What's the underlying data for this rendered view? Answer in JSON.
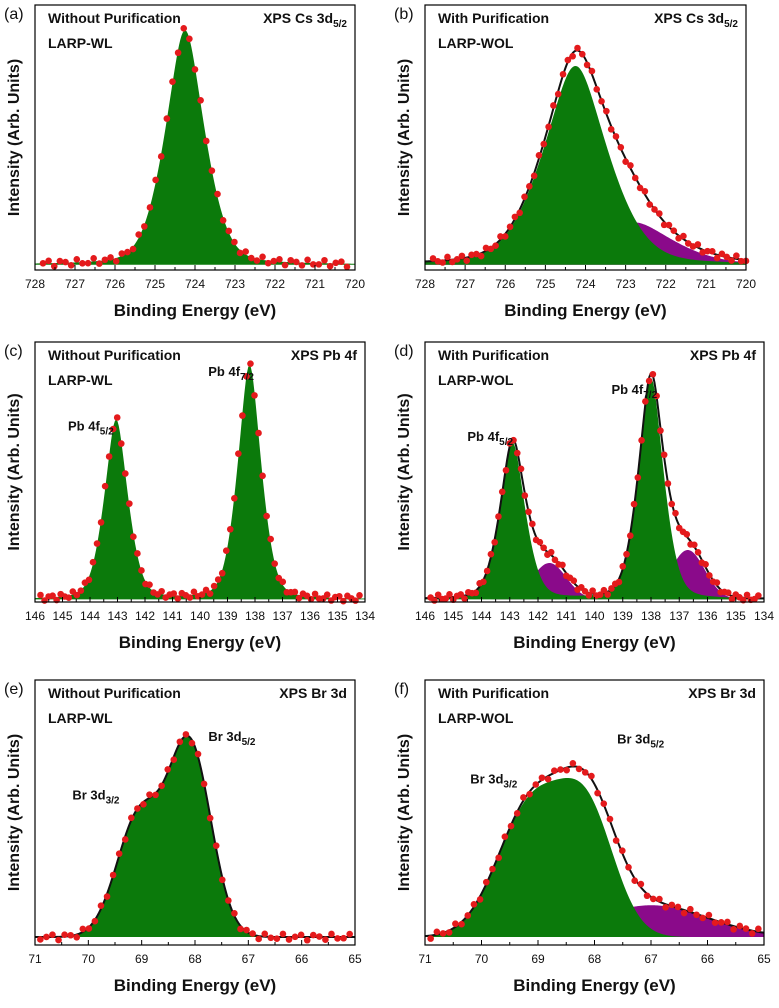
{
  "colors": {
    "primary": "#0b7a0b",
    "secondary": "#8a0a8a",
    "points": "#e41a1c",
    "envelope": "#111111",
    "axis": "#000000"
  },
  "chart_data": [
    {
      "type": "area",
      "panel": "(a)",
      "title": "",
      "subtitle_lines": [
        "Without Purification",
        "LARP-WL"
      ],
      "corner_label": {
        "main": "XPS Cs 3d",
        "sub": "5/2"
      },
      "xlabel": "Binding Energy (eV)",
      "ylabel": "Intensity (Arb. Units)",
      "xlim": [
        728,
        720
      ],
      "xticks": [
        728,
        727,
        726,
        725,
        724,
        723,
        722,
        721,
        720
      ],
      "ylim": [
        0,
        1.0
      ],
      "baseline": 0.02,
      "show_envelope": false,
      "components": [
        {
          "role": "primary",
          "center": 724.25,
          "amplitude": 0.885,
          "width": 0.55,
          "shape": "voigt"
        }
      ],
      "point_range": [
        727.8,
        720.2
      ],
      "point_count": 55,
      "peak_labels": []
    },
    {
      "type": "area",
      "panel": "(b)",
      "title": "",
      "subtitle_lines": [
        "With Purification",
        "LARP-WOL"
      ],
      "corner_label": {
        "main": "XPS Cs 3d",
        "sub": "5/2"
      },
      "xlabel": "Binding Energy (eV)",
      "ylabel": "Intensity (Arb. Units)",
      "xlim": [
        728,
        720
      ],
      "xticks": [
        728,
        727,
        726,
        725,
        724,
        723,
        722,
        721,
        720
      ],
      "ylim": [
        0,
        1.0
      ],
      "baseline": 0.02,
      "show_envelope": true,
      "components": [
        {
          "role": "primary",
          "center": 724.25,
          "amplitude": 0.75,
          "width": 0.9,
          "shape": "voigt"
        },
        {
          "role": "secondary",
          "center": 722.8,
          "amplitude": 0.16,
          "width": 1.1,
          "shape": "voigt"
        }
      ],
      "point_range": [
        727.8,
        720.0
      ],
      "point_count": 66,
      "peak_labels": []
    },
    {
      "type": "area",
      "panel": "(c)",
      "title": "",
      "subtitle_lines": [
        "Without Purification",
        "LARP-WL"
      ],
      "corner_label": {
        "main": "XPS Pb 4f",
        "sub": ""
      },
      "xlabel": "Binding Energy (eV)",
      "ylabel": "Intensity (Arb. Units)",
      "xlim": [
        146,
        134
      ],
      "xticks": [
        146,
        145,
        144,
        143,
        142,
        141,
        140,
        139,
        138,
        137,
        136,
        135,
        134
      ],
      "ylim": [
        0,
        1.0
      ],
      "baseline": 0.01,
      "show_envelope": false,
      "components": [
        {
          "role": "primary",
          "center": 143.05,
          "amplitude": 0.69,
          "width": 0.48,
          "shape": "voigt"
        },
        {
          "role": "primary",
          "center": 138.2,
          "amplitude": 0.9,
          "width": 0.48,
          "shape": "voigt"
        }
      ],
      "point_range": [
        145.8,
        134.2
      ],
      "point_count": 80,
      "peak_labels": [
        {
          "text": "Pb 4f",
          "sub": "5/2",
          "x": 144.8,
          "y": 0.66
        },
        {
          "text": "Pb 4f",
          "sub": "7/2",
          "x": 139.7,
          "y": 0.87
        }
      ]
    },
    {
      "type": "area",
      "panel": "(d)",
      "title": "",
      "subtitle_lines": [
        "With Purification",
        "LARP-WOL"
      ],
      "corner_label": {
        "main": "XPS Pb 4f",
        "sub": ""
      },
      "xlabel": "Binding Energy (eV)",
      "ylabel": "Intensity (Arb. Units)",
      "xlim": [
        146,
        134
      ],
      "xticks": [
        146,
        145,
        144,
        143,
        142,
        141,
        140,
        139,
        138,
        137,
        136,
        135,
        134
      ],
      "ylim": [
        0,
        1.0
      ],
      "baseline": 0.01,
      "show_envelope": true,
      "components": [
        {
          "role": "primary",
          "center": 142.9,
          "amplitude": 0.6,
          "width": 0.5,
          "shape": "voigt"
        },
        {
          "role": "primary",
          "center": 138.0,
          "amplitude": 0.85,
          "width": 0.5,
          "shape": "voigt"
        },
        {
          "role": "secondary",
          "center": 141.6,
          "amplitude": 0.14,
          "width": 0.6,
          "shape": "gauss"
        },
        {
          "role": "secondary",
          "center": 136.7,
          "amplitude": 0.19,
          "width": 0.6,
          "shape": "gauss"
        }
      ],
      "point_range": [
        145.8,
        134.2
      ],
      "point_count": 88,
      "peak_labels": [
        {
          "text": "Pb 4f",
          "sub": "5/2",
          "x": 144.5,
          "y": 0.62
        },
        {
          "text": "Pb 4f",
          "sub": "7/2",
          "x": 139.4,
          "y": 0.8
        }
      ]
    },
    {
      "type": "area",
      "panel": "(e)",
      "title": "",
      "subtitle_lines": [
        "Without Purification",
        "LARP-WL"
      ],
      "corner_label": {
        "main": "XPS Br 3d",
        "sub": ""
      },
      "xlabel": "Binding Energy (eV)",
      "ylabel": "Intensity (Arb. Units)",
      "xlim": [
        71,
        65
      ],
      "xticks": [
        71,
        70,
        69,
        68,
        67,
        66,
        65
      ],
      "ylim": [
        0,
        1.0
      ],
      "baseline": 0.03,
      "show_envelope": true,
      "components": [
        {
          "role": "primary",
          "center": 69.05,
          "amplitude": 0.45,
          "width": 0.42,
          "shape": "gauss"
        },
        {
          "role": "primary",
          "center": 68.1,
          "amplitude": 0.72,
          "width": 0.4,
          "shape": "gauss"
        }
      ],
      "point_range": [
        70.9,
        65.1
      ],
      "point_count": 52,
      "peak_labels": [
        {
          "text": "Br 3d",
          "sub": "3/2",
          "x": 70.3,
          "y": 0.55
        },
        {
          "text": "Br 3d",
          "sub": "5/2",
          "x": 67.75,
          "y": 0.77
        }
      ]
    },
    {
      "type": "area",
      "panel": "(f)",
      "title": "",
      "subtitle_lines": [
        "With Purification",
        "LARP-WOL"
      ],
      "corner_label": {
        "main": "XPS Br 3d",
        "sub": ""
      },
      "xlabel": "Binding Energy (eV)",
      "ylabel": "Intensity (Arb. Units)",
      "xlim": [
        71,
        65
      ],
      "xticks": [
        71,
        70,
        69,
        68,
        67,
        66,
        65
      ],
      "ylim": [
        0,
        1.0
      ],
      "baseline": 0.03,
      "show_envelope": true,
      "components": [
        {
          "role": "primary",
          "center": 69.1,
          "amplitude": 0.5,
          "width": 0.6,
          "shape": "gauss"
        },
        {
          "role": "primary",
          "center": 68.1,
          "amplitude": 0.42,
          "width": 0.48,
          "shape": "gauss"
        },
        {
          "role": "secondary",
          "center": 67.0,
          "amplitude": 0.12,
          "width": 1.0,
          "shape": "gauss"
        }
      ],
      "point_range": [
        70.9,
        65.1
      ],
      "point_count": 54,
      "peak_labels": [
        {
          "text": "Br 3d",
          "sub": "3/2",
          "x": 70.2,
          "y": 0.61
        },
        {
          "text": "Br 3d",
          "sub": "5/2",
          "x": 67.6,
          "y": 0.76
        }
      ]
    }
  ]
}
